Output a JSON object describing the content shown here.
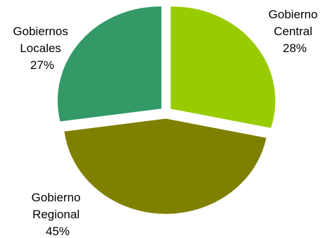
{
  "chart_data": {
    "type": "pie",
    "title": "",
    "legend": "none",
    "slices": [
      {
        "label_lines": [
          "Gobierno",
          "Central"
        ],
        "percent_label": "28%",
        "value": 28,
        "color": "#99cc00"
      },
      {
        "label_lines": [
          "Gobierno",
          "Regional"
        ],
        "percent_label": "45%",
        "value": 45,
        "color": "#808000"
      },
      {
        "label_lines": [
          "Gobiernos",
          "Locales"
        ],
        "percent_label": "27%",
        "value": 27,
        "color": "#339966"
      }
    ]
  }
}
